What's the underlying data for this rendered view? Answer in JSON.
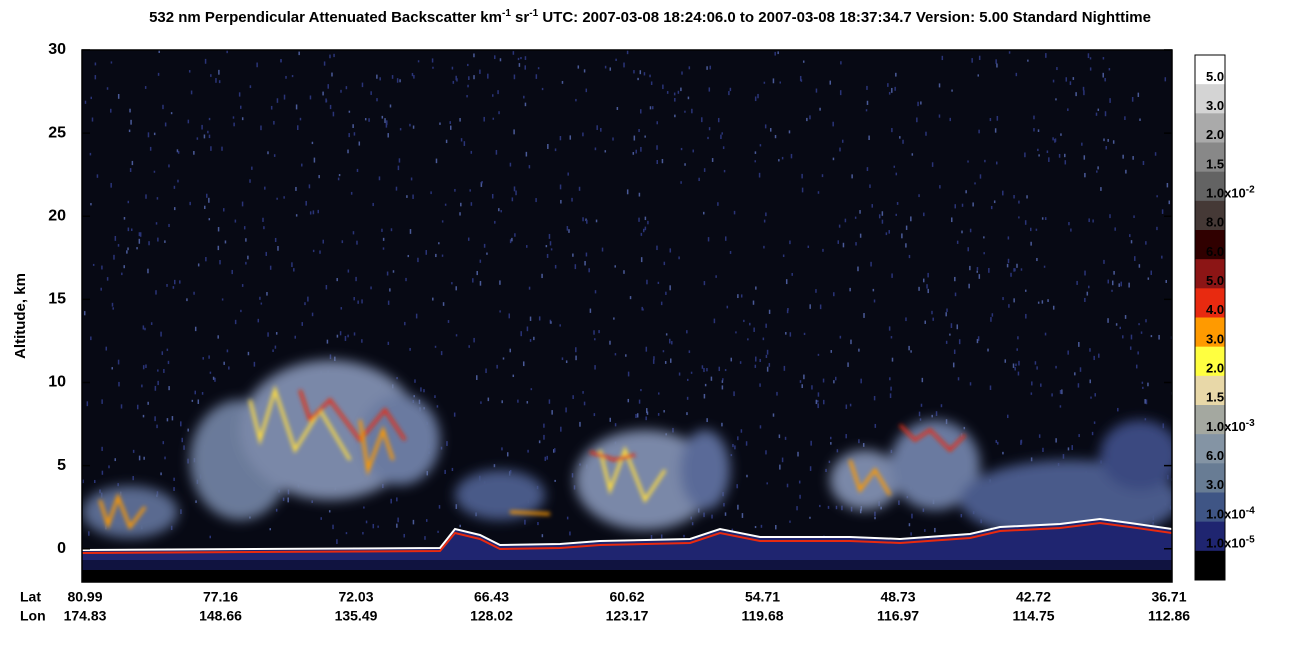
{
  "chart_data": {
    "type": "lidar-curtain",
    "title": [
      {
        "text": "532 nm Perpendicular Attenuated Backscatter km"
      },
      {
        "text": "-1",
        "sup": true
      },
      {
        "text": " sr"
      },
      {
        "text": "-1",
        "sup": true
      },
      {
        "text": "  UTC: 2007-03-08 18:24:06.0 to 2007-03-08 18:37:34.7  Version: 5.00 Standard Nighttime"
      }
    ],
    "y_label": "Altitude, km",
    "ylim": [
      -2,
      30
    ],
    "yticks": [
      0,
      5,
      10,
      15,
      20,
      25,
      30
    ],
    "x_rows": [
      {
        "name": "Lat",
        "values": [
          80.99,
          77.16,
          72.03,
          66.43,
          60.62,
          54.71,
          48.73,
          42.72,
          36.71
        ]
      },
      {
        "name": "Lon",
        "values": [
          174.83,
          148.66,
          135.49,
          128.02,
          123.17,
          119.68,
          116.97,
          114.75,
          112.86
        ]
      }
    ],
    "colorbar": {
      "colors": [
        "#ffffff",
        "#d4d4d4",
        "#aaaaaa",
        "#888888",
        "#636363",
        "#453936",
        "#300000",
        "#8c1515",
        "#e82a10",
        "#ff9a00",
        "#ffff40",
        "#e8d8a8",
        "#a4a8a0",
        "#8494a4",
        "#687c94",
        "#3f5585",
        "#1f2570",
        "#000000"
      ],
      "labels": [
        {
          "text": "5.0"
        },
        {
          "text": "3.0"
        },
        {
          "text": "2.0"
        },
        {
          "text": "1.5"
        },
        {
          "text": "1.0x10",
          "exp": "-2"
        },
        {
          "text": "8.0"
        },
        {
          "text": "6.0"
        },
        {
          "text": "5.0"
        },
        {
          "text": "4.0"
        },
        {
          "text": "3.0"
        },
        {
          "text": "2.0"
        },
        {
          "text": "1.5"
        },
        {
          "text": "1.0x10",
          "exp": "-3"
        },
        {
          "text": "6.0"
        },
        {
          "text": "3.0"
        },
        {
          "text": "1.0x10",
          "exp": "-4"
        },
        {
          "text": "1.0x10",
          "exp": "-5"
        }
      ]
    }
  }
}
